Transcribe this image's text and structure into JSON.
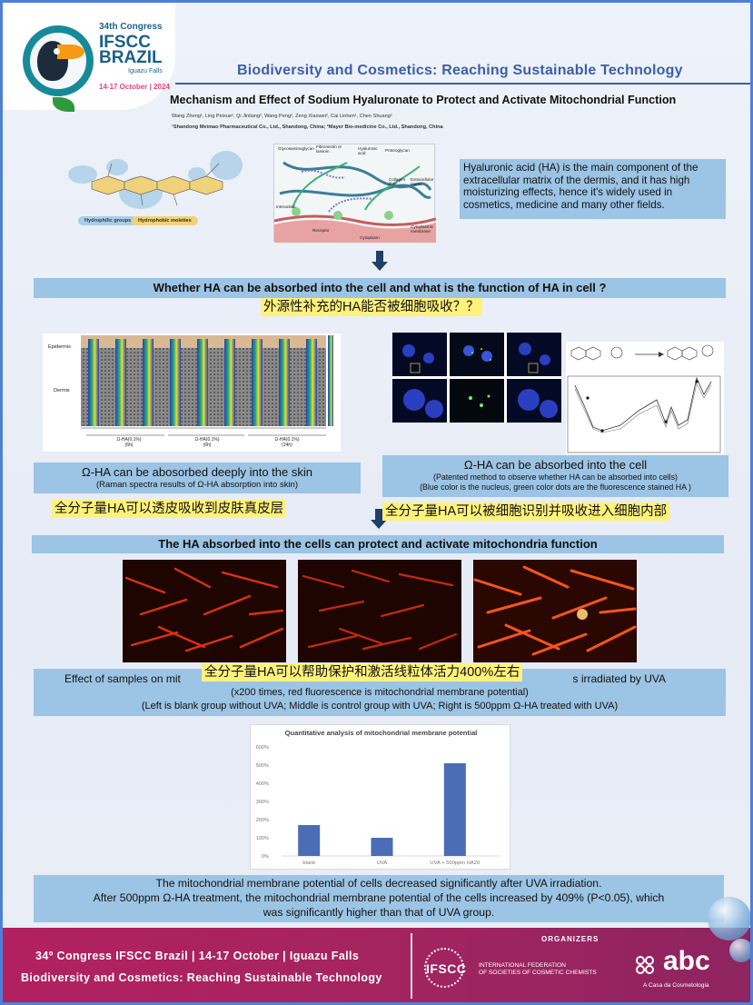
{
  "header": {
    "congress_number": "34th Congress",
    "congress_name_1": "IFSCC",
    "congress_name_2": "BRAZIL",
    "congress_city": "Iguazu Falls",
    "congress_dates": "14-17 October | 2024",
    "tagline": "Biodiversity and Cosmetics: Reaching Sustainable Technology"
  },
  "paper": {
    "title": "Mechanism and Effect of Sodium Hyaluronate to Protect and Activate Mitochondrial Function",
    "authors": "Wang Zheng¹, Ling Peixue², Qi Jinliang², Wang Peng², Zeng Xiaowei², Cai Linhen¹, Chen Shuang²",
    "affiliations": "¹Shandong Meimao Pharmaceutical Co., Ltd., Shandong, China; ²Mayer Bio-medicine Co., Ltd., Shandong, China"
  },
  "figure_labels": {
    "molecule": {
      "hydrophilic": "Hydrophilic groups",
      "hydrophobic": "Hydrophobic moieties"
    },
    "matrix": {
      "glycosaminoglycan": "Glycosaminoglycan",
      "fibronectin": "Fibronectin or laminin",
      "hyaluronic_acid": "Hyaluronic acid",
      "proteoglycan": "Proteoglycan",
      "collagen": "Collagen fiber",
      "extracellular": "Extracellular matrix",
      "interaction": "Interaction",
      "receptor": "Receptor",
      "cytoplasmic": "Cytoplasmic membrane",
      "cytoplasm": "Cytoplasm"
    },
    "raman": {
      "epidermis": "Epidermis",
      "dermis": "Dermis",
      "group_1": "Ω-HA(0.1%)",
      "group_1_time": "(6h)",
      "group_2": "Ω-HA(0.1%)",
      "group_2_time": "(6h)",
      "group_3": "Ω-HA(0.1%)",
      "group_3_time": "(24h)"
    }
  },
  "intro": {
    "text": "Hyaluronic acid (HA) is the main component of the extracellular matrix of the dermis, and it has high moisturizing effects, hence it's widely used in cosmetics, medicine and many other fields."
  },
  "question": {
    "banner": "Whether HA can be absorbed into the cell and what is the function of HA in cell ?",
    "cn_note": "外源性补充的HA能否被细胞吸收？？"
  },
  "raman_caption": {
    "main": "Ω-HA can be abosorbed deeply into the skin",
    "sub": "(Raman spectra results of Ω-HA absorption into skin)",
    "cn_note": "全分子量HA可以透皮吸收到皮肤真皮层"
  },
  "cells_caption": {
    "main": "Ω-HA can be absorbed into the cell",
    "sub1": "(Patented method to observe whether HA can be absorbed into cells)",
    "sub2": "(Blue color is the nucleus, green color dots are the fluorescence stained HA )",
    "cn_note": "全分子量HA可以被细胞识别并吸收进入细胞内部"
  },
  "mito": {
    "banner": "The HA absorbed into the cells can protect and activate mitochondria function",
    "caption_left": "Effect of samples on mit",
    "caption_right": "s irradiated by UVA",
    "caption_line2": "(x200 times, red fluorescence is mitochondrial membrane potential)",
    "caption_line3": "(Left is blank group without UVA; Middle is control group with UVA; Right is 500ppm Ω-HA treated with UVA)",
    "cn_note": "全分子量HA可以帮助保护和激活线粒体活力400%左右"
  },
  "chart_data": {
    "type": "bar",
    "title": "Quantitative analysis of mitochondrial membrane potential",
    "categories": [
      "blank",
      "UVA",
      "UVA + 500ppm HA20"
    ],
    "values": [
      170,
      100,
      510
    ],
    "yticks": [
      "0%",
      "100%",
      "200%",
      "300%",
      "400%",
      "500%",
      "600%"
    ],
    "ylim": [
      0,
      600
    ],
    "bar_color": "#4a6db5",
    "grid": false
  },
  "result": {
    "line1": "The mitochondrial membrane potential of cells decreased significantly after UVA irradiation.",
    "line2": "After 500ppm Ω-HA treatment, the mitochondrial membrane potential of the cells increased by 409% (P<0.05), which",
    "line3": "was significantly higher than that of UVA group."
  },
  "footer": {
    "line1": "34º Congress IFSCC Brazil | 14-17 October | Iguazu Falls",
    "line2": "Biodiversity and Cosmetics: Reaching Sustainable Technology",
    "organizers": "ORGANIZERS",
    "ifscc": "IFSCC",
    "ifscc_full_1": "INTERNATIONAL FEDERATION",
    "ifscc_full_2": "OF SOCIETIES OF COSMETIC CHEMISTS",
    "abc": "abc",
    "abc_sub": "A Casa da Cosmetologia"
  },
  "colors": {
    "caption_box": "#9cc4e4",
    "highlight": "#fff27a",
    "footer": "#a4245f",
    "frame": "#4f7fd6",
    "tagline": "#3b5fa8"
  }
}
